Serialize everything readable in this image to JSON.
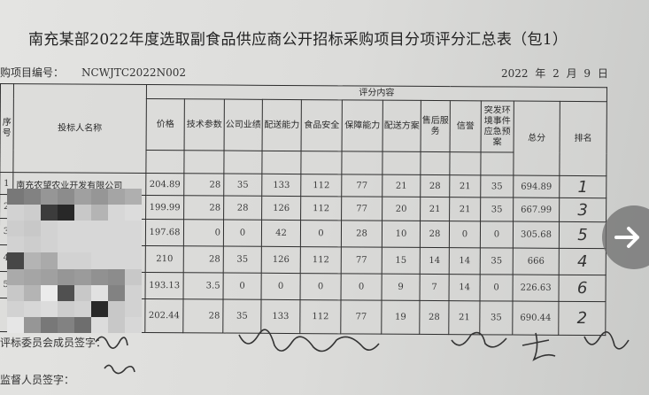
{
  "title": "南充某部2022年度选取副食品供应商公开招标采购项目分项评分汇总表（包1）",
  "project": {
    "label": "购项目编号：",
    "number": "NCWJTC2022N002"
  },
  "date": "2022 年 2 月 9 日",
  "table": {
    "group_header": "评分内容",
    "headers": {
      "seq": "序号",
      "name": "投标人名称",
      "cols": [
        "价格",
        "技术参数",
        "公司业绩",
        "配送能力",
        "食品安全",
        "保障能力",
        "配送方案",
        "售后服务",
        "信誉",
        "突发环境事件应急预案"
      ],
      "total": "总分",
      "rank": "排名"
    },
    "rows": [
      {
        "seq": "1",
        "name": "南充农望农业开发有限公司",
        "values": [
          "204.89",
          "28",
          "35",
          "133",
          "112",
          "77",
          "21",
          "28",
          "21",
          "35"
        ],
        "total": "694.89",
        "rank": "1"
      },
      {
        "seq": "2",
        "name": "",
        "values": [
          "199.99",
          "28",
          "28",
          "126",
          "112",
          "77",
          "20",
          "21",
          "21",
          "35"
        ],
        "total": "667.99",
        "rank": "3"
      },
      {
        "seq": "3",
        "name": "",
        "values": [
          "197.68",
          "0",
          "0",
          "42",
          "0",
          "28",
          "10",
          "28",
          "0",
          "0"
        ],
        "total": "305.68",
        "rank": "5"
      },
      {
        "seq": "4",
        "name": "",
        "values": [
          "210",
          "28",
          "35",
          "126",
          "112",
          "77",
          "15",
          "14",
          "14",
          "35"
        ],
        "total": "666",
        "rank": "4"
      },
      {
        "seq": "5",
        "name": "",
        "values": [
          "193.13",
          "3.5",
          "0",
          "0",
          "0",
          "0",
          "9",
          "7",
          "14",
          "0"
        ],
        "total": "226.63",
        "rank": "6"
      },
      {
        "seq": "",
        "name": "",
        "values": [
          "202.44",
          "28",
          "35",
          "133",
          "112",
          "77",
          "19",
          "28",
          "21",
          "35"
        ],
        "total": "690.44",
        "rank": "2"
      }
    ]
  },
  "signatures": {
    "committee_label": "评标委员会成员签字：",
    "supervisor_label": "监督人员签字："
  },
  "viewer": {
    "next_icon": "chevron-right-icon"
  }
}
